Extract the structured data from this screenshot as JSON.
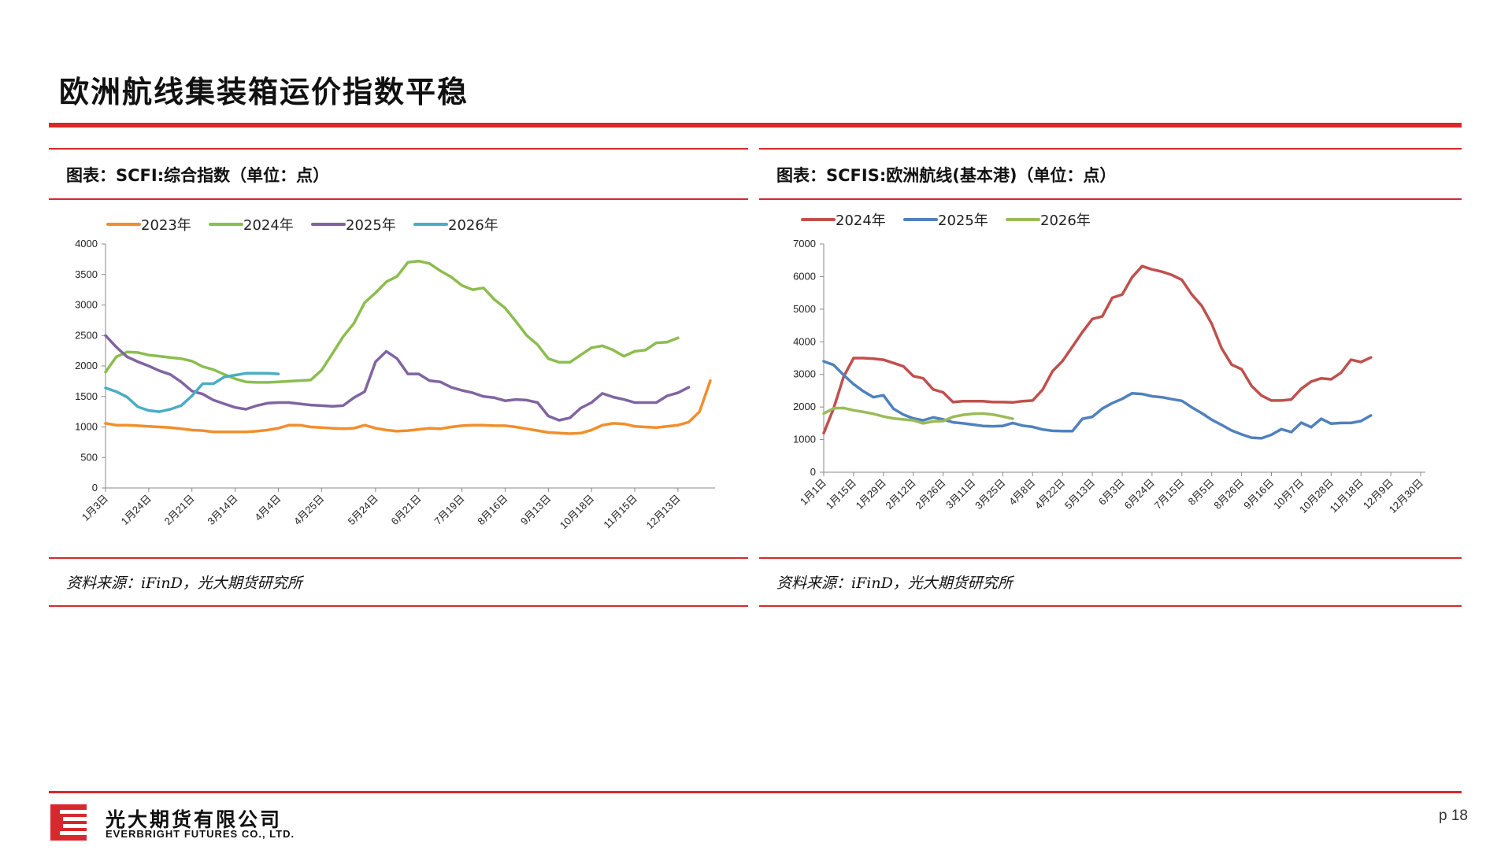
{
  "page": {
    "title": "欧洲航线集装箱运价指数平稳",
    "page_number": "p 18"
  },
  "colors": {
    "accent": "#d7282d"
  },
  "footer": {
    "company_cn": "光大期货有限公司",
    "company_en": "EVERBRIGHT FUTURES CO., LTD.",
    "logo_icon": "everbright-logo-icon"
  },
  "panels": [
    {
      "title": "图表：SCFI:综合指数（单位：点）",
      "source": "资料来源：iFinD，光大期货研究所"
    },
    {
      "title": "图表：SCFIS:欧洲航线(基本港)（单位：点）",
      "source": "资料来源：iFinD，光大期货研究所"
    }
  ],
  "chart_data": [
    {
      "type": "line",
      "ylim": [
        0,
        4000
      ],
      "yticks": [
        "0",
        "500",
        "1000",
        "1500",
        "2000",
        "2500",
        "3000",
        "3500",
        "4000"
      ],
      "x_labels": [
        "1月3日",
        "1月24日",
        "2月21日",
        "3月14日",
        "4月4日",
        "4月25日",
        "5月24日",
        "6月21日",
        "7月19日",
        "8月16日",
        "9月13日",
        "10月18日",
        "11月15日",
        "12月13日"
      ],
      "x_count": 57,
      "x_label_positions": [
        0,
        4,
        8,
        12,
        16,
        20,
        25,
        29,
        33,
        37,
        41,
        45,
        49,
        53
      ],
      "legend_position": "top-left",
      "series": [
        {
          "name": "2023年",
          "color": "#f28e2b",
          "values": [
            1060,
            1030,
            1030,
            1020,
            1010,
            1000,
            990,
            970,
            950,
            940,
            920,
            920,
            920,
            920,
            930,
            950,
            980,
            1030,
            1030,
            1000,
            990,
            980,
            970,
            980,
            1030,
            980,
            950,
            930,
            940,
            960,
            980,
            970,
            1000,
            1020,
            1030,
            1030,
            1020,
            1020,
            1000,
            970,
            940,
            910,
            900,
            890,
            900,
            950,
            1030,
            1060,
            1050,
            1010,
            1000,
            990,
            1010,
            1030,
            1080,
            1250,
            1760
          ]
        },
        {
          "name": "2024年",
          "color": "#8cbd4f",
          "values": [
            1900,
            2150,
            2230,
            2220,
            2180,
            2160,
            2140,
            2120,
            2080,
            1990,
            1940,
            1860,
            1790,
            1740,
            1730,
            1730,
            1740,
            1750,
            1760,
            1770,
            1930,
            2200,
            2480,
            2700,
            3040,
            3200,
            3380,
            3470,
            3700,
            3720,
            3680,
            3560,
            3460,
            3320,
            3250,
            3280,
            3090,
            2950,
            2730,
            2500,
            2350,
            2120,
            2060,
            2060,
            2180,
            2300,
            2330,
            2260,
            2160,
            2240,
            2260,
            2380,
            2390,
            2460
          ]
        },
        {
          "name": "2025年",
          "color": "#8064a2",
          "values": [
            2500,
            2310,
            2150,
            2070,
            2000,
            1920,
            1860,
            1740,
            1590,
            1540,
            1440,
            1380,
            1320,
            1290,
            1350,
            1390,
            1400,
            1400,
            1380,
            1360,
            1350,
            1340,
            1350,
            1480,
            1580,
            2070,
            2240,
            2120,
            1870,
            1870,
            1760,
            1740,
            1650,
            1600,
            1560,
            1500,
            1480,
            1430,
            1450,
            1440,
            1400,
            1180,
            1110,
            1150,
            1310,
            1400,
            1550,
            1490,
            1450,
            1400,
            1400,
            1400,
            1510,
            1560,
            1650
          ]
        },
        {
          "name": "2026年",
          "color": "#4aacc6",
          "values": [
            1640,
            1580,
            1490,
            1330,
            1270,
            1250,
            1290,
            1350,
            1510,
            1710,
            1710,
            1820,
            1850,
            1880,
            1880,
            1880,
            1870
          ]
        }
      ]
    },
    {
      "type": "line",
      "ylim": [
        0,
        7000
      ],
      "yticks": [
        "0",
        "1000",
        "2000",
        "3000",
        "4000",
        "5000",
        "6000",
        "7000"
      ],
      "x_labels": [
        "1月1日",
        "1月15日",
        "1月29日",
        "2月12日",
        "2月26日",
        "3月11日",
        "3月25日",
        "4月8日",
        "4月22日",
        "5月13日",
        "6月3日",
        "6月24日",
        "7月15日",
        "8月5日",
        "8月26日",
        "9月16日",
        "10月7日",
        "10月28日",
        "11月18日",
        "12月9日",
        "12月30日"
      ],
      "x_count": 61,
      "x_label_positions": [
        0,
        3,
        6,
        9,
        12,
        15,
        18,
        21,
        24,
        27,
        30,
        33,
        36,
        39,
        42,
        45,
        48,
        51,
        54,
        57,
        60
      ],
      "legend_position": "top-left",
      "series": [
        {
          "name": "2024年",
          "color": "#c0504d",
          "values": [
            1200,
            1960,
            2930,
            3500,
            3500,
            3480,
            3450,
            3350,
            3250,
            2950,
            2880,
            2540,
            2450,
            2150,
            2180,
            2180,
            2180,
            2150,
            2150,
            2140,
            2180,
            2200,
            2530,
            3100,
            3410,
            3850,
            4300,
            4700,
            4780,
            5350,
            5450,
            5980,
            6320,
            6220,
            6150,
            6050,
            5900,
            5450,
            5100,
            4550,
            3800,
            3300,
            3160,
            2650,
            2350,
            2200,
            2200,
            2230,
            2560,
            2780,
            2880,
            2850,
            3050,
            3450,
            3380,
            3520
          ]
        },
        {
          "name": "2025年",
          "color": "#4f81bd",
          "values": [
            3400,
            3290,
            2980,
            2700,
            2480,
            2300,
            2360,
            1950,
            1770,
            1650,
            1590,
            1680,
            1620,
            1530,
            1500,
            1460,
            1420,
            1410,
            1420,
            1510,
            1430,
            1390,
            1310,
            1270,
            1260,
            1260,
            1640,
            1700,
            1950,
            2120,
            2250,
            2420,
            2400,
            2330,
            2300,
            2240,
            2190,
            1990,
            1810,
            1610,
            1450,
            1280,
            1160,
            1060,
            1040,
            1150,
            1320,
            1230,
            1520,
            1380,
            1640,
            1490,
            1510,
            1510,
            1570,
            1740
          ]
        },
        {
          "name": "2026年",
          "color": "#9bbb59",
          "values": [
            1800,
            1960,
            1970,
            1900,
            1850,
            1790,
            1710,
            1650,
            1620,
            1590,
            1500,
            1560,
            1570,
            1700,
            1760,
            1790,
            1800,
            1770,
            1710,
            1640
          ]
        }
      ]
    }
  ]
}
